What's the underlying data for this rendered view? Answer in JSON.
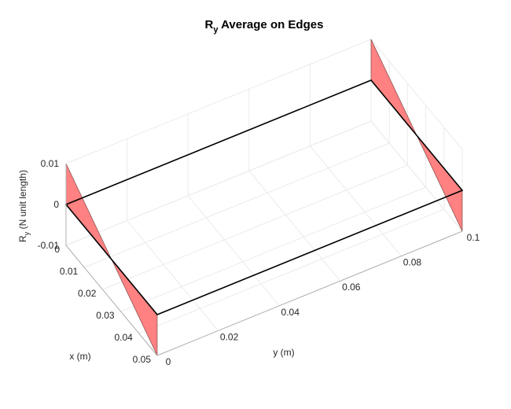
{
  "chart_data": {
    "type": "surface3d",
    "title": {
      "base": "R",
      "subscript": "y",
      "rest": " Average on Edges"
    },
    "zlabel": {
      "base": "R",
      "subscript": "y",
      "rest": "  (N unit length)"
    },
    "xlabel": "x (m)",
    "ylabel": "y (m)",
    "xlim": [
      0,
      0.05
    ],
    "ylim": [
      0,
      0.1
    ],
    "zlim": [
      -0.01,
      0.01
    ],
    "x_ticks": [
      "0",
      "0.01",
      "0.02",
      "0.03",
      "0.04",
      "0.05"
    ],
    "y_ticks": [
      "0",
      "0.02",
      "0.04",
      "0.06",
      "0.08",
      "0.1"
    ],
    "z_ticks": [
      "0.01",
      "0",
      "-0.01"
    ],
    "x_tick_values": [
      0,
      0.01,
      0.02,
      0.03,
      0.04,
      0.05
    ],
    "y_tick_values": [
      0,
      0.02,
      0.04,
      0.06,
      0.08,
      0.1
    ],
    "z_tick_values": [
      0.01,
      0,
      -0.01
    ],
    "grid": true,
    "patch_color": "#ff7a7a",
    "edge_color": "#000000",
    "plate_outline": [
      [
        0,
        0,
        0
      ],
      [
        0.05,
        0,
        0
      ],
      [
        0.05,
        0.1,
        0
      ],
      [
        0,
        0.1,
        0
      ]
    ],
    "patches": [
      {
        "name": "edge-y0",
        "vertices": [
          [
            0,
            0,
            0.01
          ],
          [
            0.05,
            0,
            -0.01
          ],
          [
            0.05,
            0,
            0
          ],
          [
            0,
            0,
            0
          ]
        ]
      },
      {
        "name": "edge-y01",
        "vertices": [
          [
            0,
            0.1,
            0.01
          ],
          [
            0.05,
            0.1,
            -0.01
          ],
          [
            0.05,
            0.1,
            0
          ],
          [
            0,
            0.1,
            0
          ]
        ]
      }
    ]
  }
}
